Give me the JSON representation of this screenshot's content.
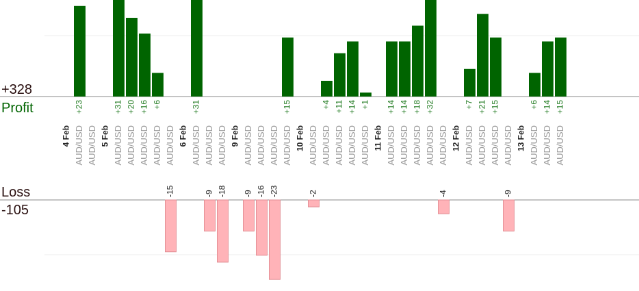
{
  "chart_data": {
    "type": "bar",
    "profit_label": "Profit",
    "profit_total": "+328",
    "loss_label": "Loss",
    "loss_total": "-105",
    "colors": {
      "profit": "#006400",
      "profit_text": "#1f7a1f",
      "loss": "#ffb3b8",
      "loss_stroke": "#e08a90",
      "total_text": "#2a1010"
    },
    "slots": [
      {
        "type": "date",
        "label": "4 Feb"
      },
      {
        "type": "trade",
        "pair": "AUD/USD",
        "value": 23
      },
      {
        "type": "trade",
        "pair": "AUD/USD",
        "value": 0
      },
      {
        "type": "date",
        "label": "5 Feb"
      },
      {
        "type": "trade",
        "pair": "AUD/USD",
        "value": 31
      },
      {
        "type": "trade",
        "pair": "AUD/USD",
        "value": 20
      },
      {
        "type": "trade",
        "pair": "AUD/USD",
        "value": 16
      },
      {
        "type": "trade",
        "pair": "AUD/USD",
        "value": 6
      },
      {
        "type": "trade",
        "pair": "AUD/USD",
        "value": -15
      },
      {
        "type": "date",
        "label": "6 Feb"
      },
      {
        "type": "trade",
        "pair": "AUD/USD",
        "value": 31
      },
      {
        "type": "trade",
        "pair": "AUD/USD",
        "value": -9
      },
      {
        "type": "trade",
        "pair": "AUD/USD",
        "value": -18
      },
      {
        "type": "date",
        "label": "9 Feb"
      },
      {
        "type": "trade",
        "pair": "AUD/USD",
        "value": -9
      },
      {
        "type": "trade",
        "pair": "AUD/USD",
        "value": -16
      },
      {
        "type": "trade",
        "pair": "AUD/USD",
        "value": -23
      },
      {
        "type": "trade",
        "pair": "AUD/USD",
        "value": 15
      },
      {
        "type": "date",
        "label": "10 Feb"
      },
      {
        "type": "trade",
        "pair": "AUD/USD",
        "value": -2
      },
      {
        "type": "trade",
        "pair": "AUD/USD",
        "value": 4
      },
      {
        "type": "trade",
        "pair": "AUD/USD",
        "value": 11
      },
      {
        "type": "trade",
        "pair": "AUD/USD",
        "value": 14
      },
      {
        "type": "trade",
        "pair": "AUD/USD",
        "value": 1
      },
      {
        "type": "date",
        "label": "11 Feb"
      },
      {
        "type": "trade",
        "pair": "AUD/USD",
        "value": 14
      },
      {
        "type": "trade",
        "pair": "AUD/USD",
        "value": 14
      },
      {
        "type": "trade",
        "pair": "AUD/USD",
        "value": 18
      },
      {
        "type": "trade",
        "pair": "AUD/USD",
        "value": 32
      },
      {
        "type": "trade",
        "pair": "AUD/USD",
        "value": -4
      },
      {
        "type": "date",
        "label": "12 Feb"
      },
      {
        "type": "trade",
        "pair": "AUD/USD",
        "value": 7
      },
      {
        "type": "trade",
        "pair": "AUD/USD",
        "value": 21
      },
      {
        "type": "trade",
        "pair": "AUD/USD",
        "value": 15
      },
      {
        "type": "trade",
        "pair": "AUD/USD",
        "value": -9
      },
      {
        "type": "date",
        "label": "13 Feb"
      },
      {
        "type": "trade",
        "pair": "AUD/USD",
        "value": 6
      },
      {
        "type": "trade",
        "pair": "AUD/USD",
        "value": 14
      },
      {
        "type": "trade",
        "pair": "AUD/USD",
        "value": 15
      }
    ]
  }
}
